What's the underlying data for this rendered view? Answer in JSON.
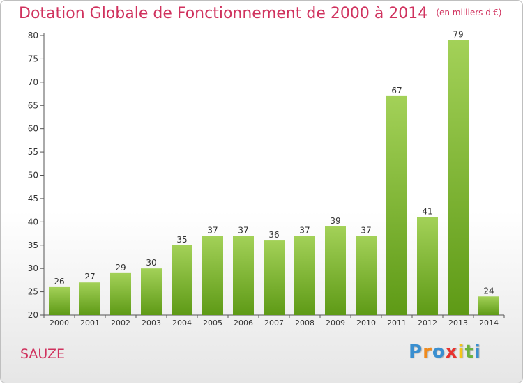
{
  "chart_data": {
    "type": "bar",
    "title": "Dotation Globale de Fonctionnement de 2000 à 2014",
    "subtitle": "(en milliers d'€)",
    "xlabel": "",
    "ylabel": "",
    "categories": [
      "2000",
      "2001",
      "2002",
      "2003",
      "2004",
      "2005",
      "2006",
      "2007",
      "2008",
      "2009",
      "2010",
      "2011",
      "2012",
      "2013",
      "2014"
    ],
    "values": [
      26,
      27,
      29,
      30,
      35,
      37,
      37,
      36,
      37,
      39,
      37,
      67,
      41,
      79,
      24
    ],
    "ylim": [
      20,
      80
    ],
    "yticks": [
      20,
      25,
      30,
      35,
      40,
      45,
      50,
      55,
      60,
      65,
      70,
      75,
      80
    ],
    "grid": false,
    "legend": "none",
    "bar_color_top": "#a3d158",
    "bar_color_bottom": "#5e9a16"
  },
  "commune": "SAUZE",
  "logo": {
    "letters": [
      "P",
      "r",
      "o",
      "x",
      "i",
      "t",
      "i"
    ],
    "colors": [
      "#3a8fd0",
      "#f08a1c",
      "#3a8fd0",
      "#e8322e",
      "#f5c518",
      "#6cb33e",
      "#3a8fd0"
    ]
  }
}
